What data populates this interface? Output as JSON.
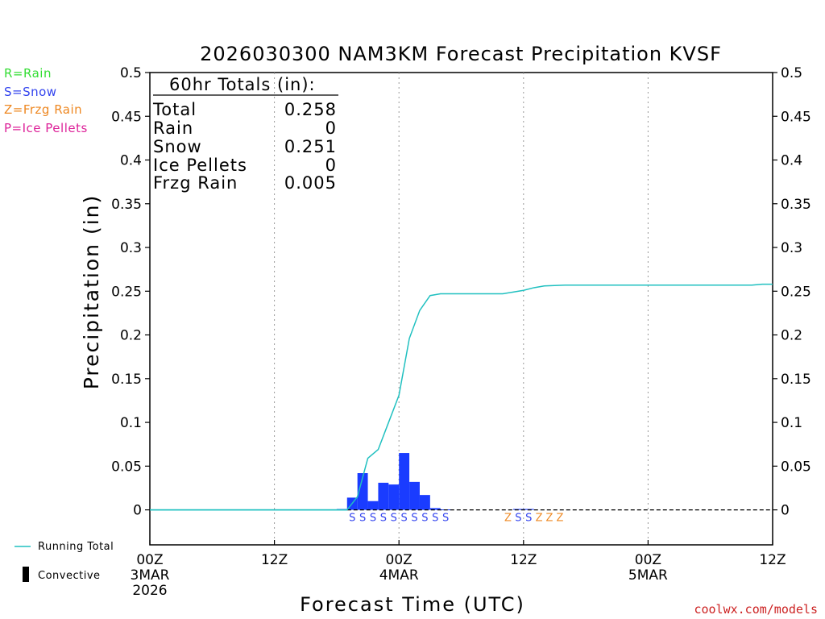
{
  "legend": {
    "rain": {
      "label": "R=Rain",
      "color": "#33dd33"
    },
    "snow": {
      "label": "S=Snow",
      "color": "#3344ee"
    },
    "frzg": {
      "label": "Z=Frzg Rain",
      "color": "#ee8822"
    },
    "ice": {
      "label": "P=Ice Pellets",
      "color": "#dd2299"
    },
    "running_total": "Running Total",
    "convective": "Convective"
  },
  "totals_box": {
    "header": "60hr Totals (in):",
    "rows": [
      {
        "label": "Total",
        "value": "0.258"
      },
      {
        "label": "Rain",
        "value": "0"
      },
      {
        "label": "Snow",
        "value": "0.251"
      },
      {
        "label": "Ice Pellets",
        "value": "0"
      },
      {
        "label": "Frzg Rain",
        "value": "0.005"
      }
    ]
  },
  "credit": "coolwx.com/models",
  "colors": {
    "bars": "#1a3cff",
    "running_total": "#20c0c0",
    "snow": "#3344ee",
    "frzg": "#ee8822"
  },
  "chart_data": {
    "type": "bar",
    "title": "2026030300 NAM3KM Forecast Precipitation KVSF",
    "xlabel": "Forecast Time (UTC)",
    "ylabel": "Precipitation (in)",
    "ylim": [
      -0.04,
      0.5
    ],
    "y_ticks": [
      0,
      0.05,
      0.1,
      0.15,
      0.2,
      0.25,
      0.3,
      0.35,
      0.4,
      0.45,
      0.5
    ],
    "y_tick_labels": [
      "0",
      "0.05",
      "0.1",
      "0.15",
      "0.2",
      "0.25",
      "0.3",
      "0.35",
      "0.4",
      "0.45",
      "0.5"
    ],
    "xlim_hours": [
      0,
      60
    ],
    "x_ticks": [
      {
        "hour": 0,
        "label": "00Z",
        "date": "3MAR",
        "year": "2026"
      },
      {
        "hour": 12,
        "label": "12Z",
        "date": "",
        "year": ""
      },
      {
        "hour": 24,
        "label": "00Z",
        "date": "4MAR",
        "year": ""
      },
      {
        "hour": 36,
        "label": "12Z",
        "date": "",
        "year": ""
      },
      {
        "hour": 48,
        "label": "00Z",
        "date": "5MAR",
        "year": ""
      },
      {
        "hour": 60,
        "label": "12Z",
        "date": "",
        "year": ""
      }
    ],
    "grid": "vertical-dotted",
    "series": [
      {
        "name": "Hourly Precipitation",
        "kind": "bar",
        "hours": [
          19,
          20,
          21,
          22,
          23,
          24,
          25,
          26,
          27,
          28,
          29,
          36,
          37
        ],
        "values": [
          0.001,
          0.014,
          0.042,
          0.01,
          0.031,
          0.029,
          0.065,
          0.032,
          0.017,
          0.002,
          0.0005,
          0.001,
          0.001
        ]
      },
      {
        "name": "Running Total",
        "kind": "line",
        "hours": [
          0,
          19,
          20,
          21,
          22,
          23,
          24,
          25,
          26,
          27,
          28,
          29,
          30,
          31,
          32,
          33,
          34,
          35,
          36,
          37,
          38,
          40,
          42,
          44,
          46,
          48,
          50,
          52,
          54,
          56,
          58,
          59,
          60
        ],
        "values": [
          0,
          0,
          0.015,
          0.059,
          0.069,
          0.1,
          0.131,
          0.196,
          0.228,
          0.245,
          0.247,
          0.247,
          0.247,
          0.247,
          0.247,
          0.247,
          0.247,
          0.249,
          0.251,
          0.254,
          0.256,
          0.257,
          0.257,
          0.257,
          0.257,
          0.257,
          0.257,
          0.257,
          0.257,
          0.257,
          0.257,
          0.258,
          0.258
        ]
      }
    ],
    "precip_type_markers": [
      {
        "hour": 20,
        "type": "S"
      },
      {
        "hour": 21,
        "type": "S"
      },
      {
        "hour": 22,
        "type": "S"
      },
      {
        "hour": 23,
        "type": "S"
      },
      {
        "hour": 24,
        "type": "S"
      },
      {
        "hour": 25,
        "type": "S"
      },
      {
        "hour": 26,
        "type": "S"
      },
      {
        "hour": 27,
        "type": "S"
      },
      {
        "hour": 28,
        "type": "S"
      },
      {
        "hour": 29,
        "type": "S"
      },
      {
        "hour": 35,
        "type": "Z"
      },
      {
        "hour": 36,
        "type": "S"
      },
      {
        "hour": 37,
        "type": "S"
      },
      {
        "hour": 38,
        "type": "Z"
      },
      {
        "hour": 39,
        "type": "Z"
      },
      {
        "hour": 40,
        "type": "Z"
      }
    ]
  }
}
